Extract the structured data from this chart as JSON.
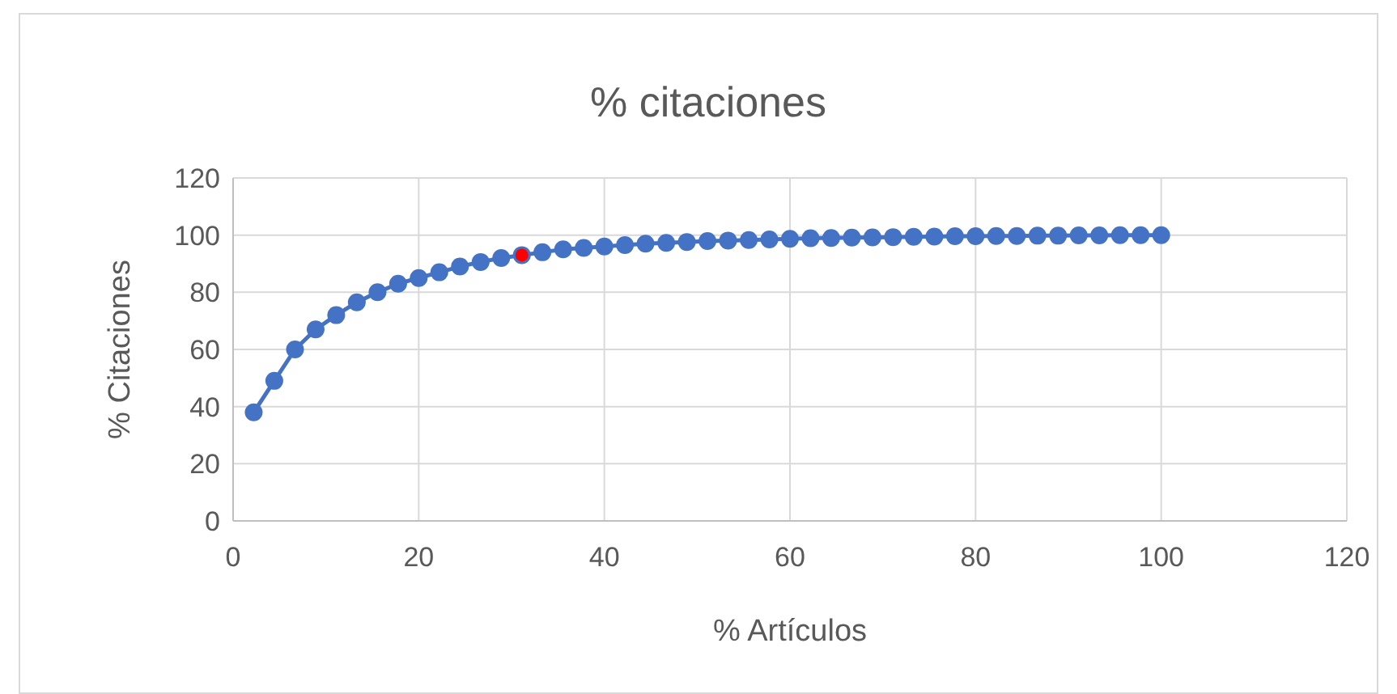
{
  "chart_data": {
    "type": "line",
    "title": "% citaciones",
    "xlabel": "% Artículos",
    "ylabel": "% Citaciones",
    "xlim": [
      0,
      120
    ],
    "xticks": [
      0,
      20,
      40,
      60,
      80,
      100,
      120
    ],
    "ylim": [
      0,
      120
    ],
    "yticks": [
      0,
      20,
      40,
      60,
      80,
      100,
      120
    ],
    "grid": true,
    "marker": "circle",
    "line_style": "solid",
    "series": [
      {
        "color": "#4472c4",
        "x": [
          2.22,
          4.44,
          6.67,
          8.89,
          11.11,
          13.33,
          15.56,
          17.78,
          20,
          22.22,
          24.44,
          26.67,
          28.89,
          31.11,
          33.33,
          35.56,
          37.78,
          40,
          42.22,
          44.44,
          46.67,
          48.89,
          51.11,
          53.33,
          55.56,
          57.78,
          60,
          62.22,
          64.44,
          66.67,
          68.89,
          71.11,
          73.33,
          75.56,
          77.78,
          80,
          82.22,
          84.44,
          86.67,
          88.89,
          91.11,
          93.33,
          95.56,
          97.78,
          100
        ],
        "values": [
          38,
          49,
          60,
          67,
          72,
          76.5,
          80,
          83,
          85,
          87,
          89,
          90.6,
          92,
          93,
          94,
          95,
          95.5,
          96,
          96.5,
          97,
          97.3,
          97.6,
          97.9,
          98.1,
          98.3,
          98.5,
          98.7,
          98.9,
          99,
          99.1,
          99.2,
          99.3,
          99.4,
          99.5,
          99.6,
          99.6,
          99.7,
          99.7,
          99.8,
          99.8,
          99.9,
          99.9,
          100,
          100,
          100
        ]
      },
      {
        "type": "scatter",
        "color": "#ff0000",
        "x": [
          31.11
        ],
        "values": [
          93
        ]
      }
    ]
  }
}
